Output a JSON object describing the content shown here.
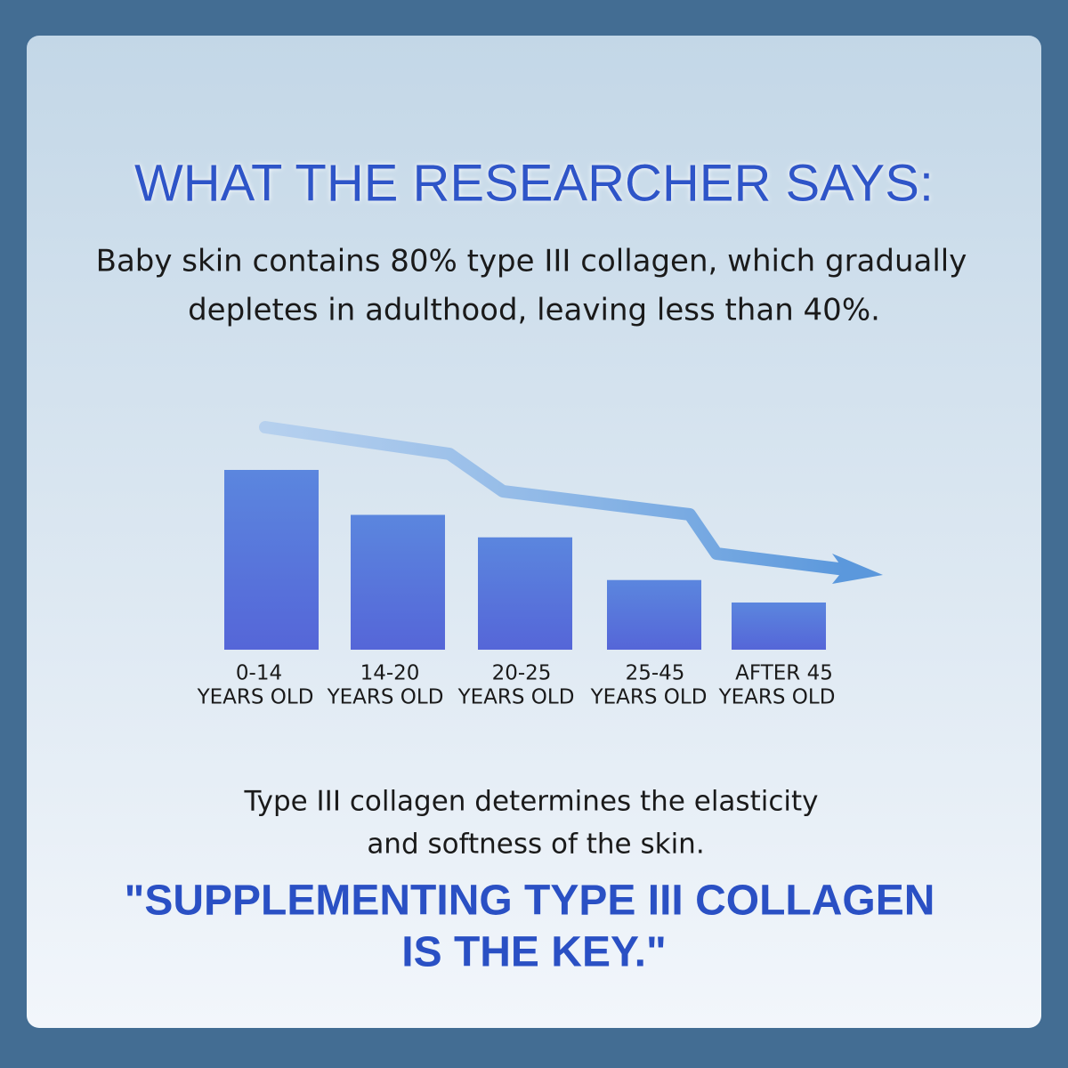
{
  "title": "WHAT THE RESEARCHER SAYS:",
  "intro": [
    "Baby skin contains 80% type III collagen, which gradually",
    "depletes in adulthood, leaving less than 40%."
  ],
  "chart_data": {
    "type": "bar",
    "categories": [
      [
        "0-14",
        "YEARS OLD"
      ],
      [
        "14-20",
        "YEARS OLD"
      ],
      [
        "20-25",
        "YEARS OLD"
      ],
      [
        "25-45",
        "YEARS OLD"
      ],
      [
        "AFTER 45",
        "YEARS OLD"
      ]
    ],
    "values": [
      80,
      60,
      50,
      31,
      21
    ],
    "color": "#5a78dc"
  },
  "note": [
    "Type III collagen determines the elasticity",
    "and softness of the skin."
  ],
  "quote": [
    "\"SUPPLEMENTING TYPE III COLLAGEN",
    "IS THE KEY.\""
  ]
}
